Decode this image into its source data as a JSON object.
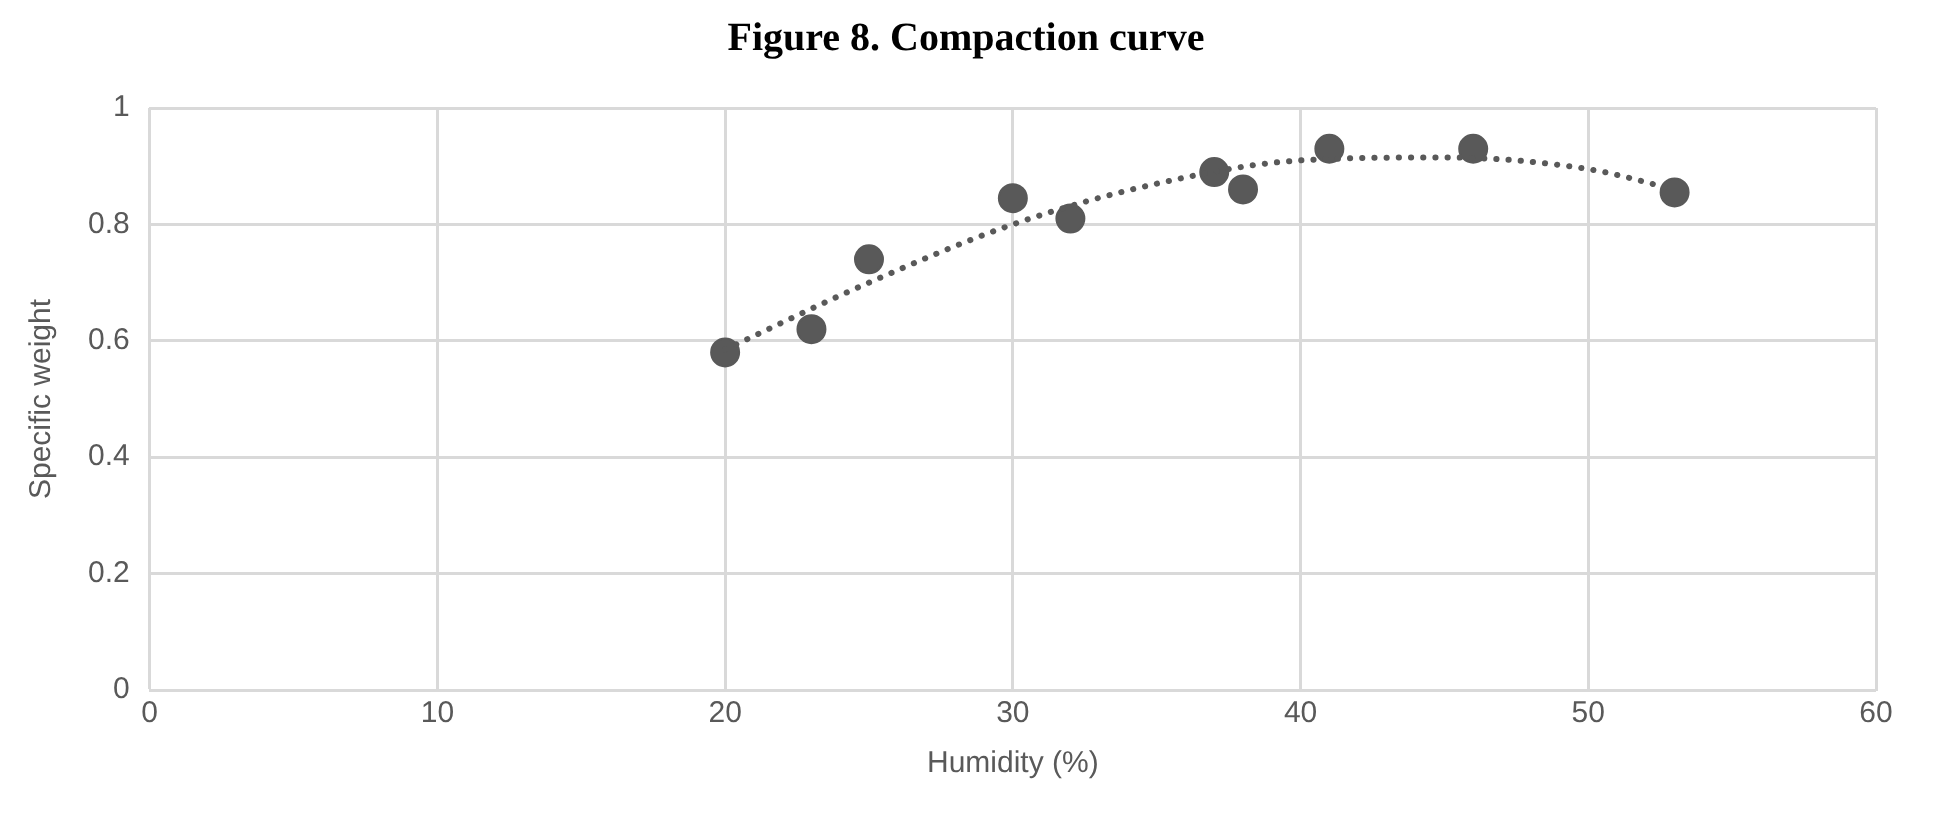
{
  "chart_data": {
    "type": "scatter",
    "title": "Figure 8. Compaction curve",
    "xlabel": "Humidity (%)",
    "ylabel": "Specific weight",
    "xlim": [
      0,
      60
    ],
    "xticks": [
      0,
      10,
      20,
      30,
      40,
      50,
      60
    ],
    "ylim": [
      0,
      1
    ],
    "yticks": [
      0,
      0.2,
      0.4,
      0.6,
      0.8,
      1
    ],
    "grid": true,
    "legend": false,
    "marker": "circle",
    "series": [
      {
        "type": "scatter",
        "color": "#595959",
        "x": [
          20,
          23,
          25,
          30,
          32,
          37,
          38,
          41,
          46,
          53
        ],
        "values": [
          0.58,
          0.62,
          0.74,
          0.845,
          0.81,
          0.89,
          0.86,
          0.93,
          0.93,
          0.855
        ]
      },
      {
        "type": "line",
        "color": "#595959",
        "line_style": "dotted",
        "marker": "none",
        "x": [
          20,
          25,
          30,
          35,
          40,
          45,
          50,
          53
        ],
        "values": [
          0.585,
          0.7,
          0.8,
          0.87,
          0.91,
          0.915,
          0.895,
          0.86
        ]
      }
    ]
  }
}
